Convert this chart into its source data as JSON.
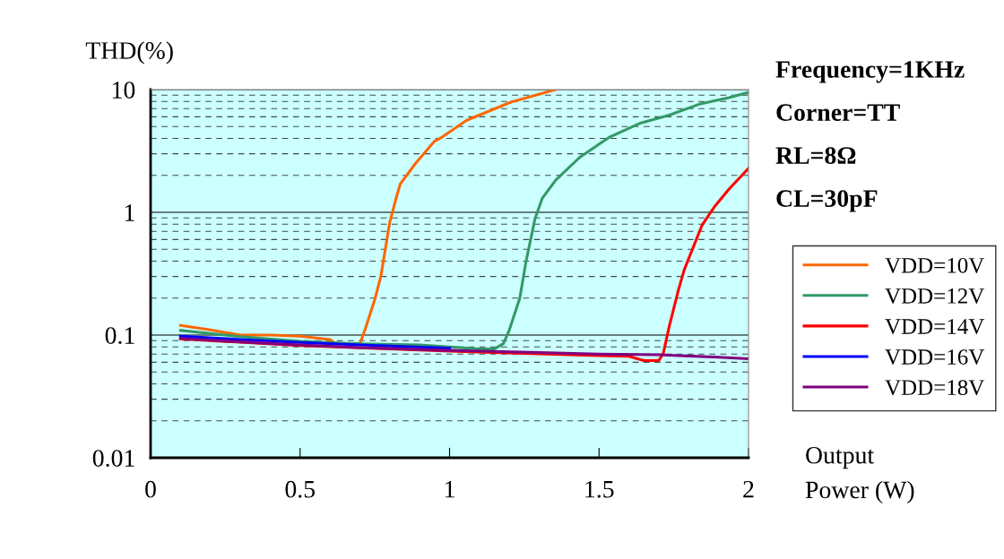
{
  "chart_data": {
    "type": "line",
    "ylabel": "THD(%)",
    "xlabel": "Output\nPower (W)",
    "annotations": [
      "Frequency=1KHz",
      "Corner=TT",
      "RL=8Ω",
      "CL=30pF"
    ],
    "log": "y",
    "xlim": [
      0,
      2
    ],
    "xticks": [
      0,
      0.5,
      1,
      1.5,
      2
    ],
    "ylim": [
      0.01,
      10
    ],
    "yticks": [
      0.01,
      0.1,
      1,
      10
    ],
    "grid": "y",
    "legend": "right",
    "line_style": "solid",
    "marker": "none",
    "series": [
      {
        "name": "VDD=10V",
        "color": "#ff6600",
        "x": [
          0.1,
          0.2,
          0.3,
          0.4,
          0.5,
          0.6,
          0.62,
          0.7,
          0.717,
          0.75,
          0.77,
          0.8,
          0.82,
          0.835,
          0.886,
          0.95,
          0.975,
          1.056,
          1.205,
          1.355
        ],
        "values": [
          0.12,
          0.11,
          0.1,
          0.1,
          0.098,
          0.092,
          0.085,
          0.085,
          0.11,
          0.195,
          0.3,
          0.83,
          1.27,
          1.7,
          2.5,
          3.8,
          4.1,
          5.6,
          7.9,
          10
        ]
      },
      {
        "name": "VDD=12V",
        "color": "#339966",
        "x": [
          0.1,
          0.3,
          0.5,
          0.7,
          0.9,
          1.0,
          1.1,
          1.15,
          1.18,
          1.2,
          1.235,
          1.256,
          1.286,
          1.31,
          1.355,
          1.435,
          1.535,
          1.635,
          1.735,
          1.835,
          1.935,
          2.0
        ],
        "values": [
          0.109,
          0.097,
          0.089,
          0.085,
          0.083,
          0.08,
          0.077,
          0.077,
          0.085,
          0.11,
          0.2,
          0.4,
          0.89,
          1.3,
          1.83,
          2.8,
          4.1,
          5.3,
          6.2,
          7.6,
          8.6,
          9.5
        ]
      },
      {
        "name": "VDD=14V",
        "color": "#ff0000",
        "x": [
          0.1,
          0.5,
          1.0,
          1.5,
          1.6,
          1.65,
          1.7,
          1.715,
          1.735,
          1.765,
          1.785,
          1.845,
          1.885,
          1.935,
          2.0
        ],
        "values": [
          0.093,
          0.082,
          0.074,
          0.068,
          0.067,
          0.062,
          0.062,
          0.071,
          0.118,
          0.23,
          0.34,
          0.79,
          1.1,
          1.55,
          2.28
        ]
      },
      {
        "name": "VDD=16V",
        "color": "#0000ff",
        "x": [
          0.1,
          0.3,
          0.5,
          0.7,
          1.0
        ],
        "values": [
          0.098,
          0.092,
          0.087,
          0.083,
          0.078
        ]
      },
      {
        "name": "VDD=18V",
        "color": "#800080",
        "x": [
          0.1,
          0.3,
          0.5,
          0.7,
          1.0,
          1.3,
          1.5,
          1.7,
          1.9,
          2.0
        ],
        "values": [
          0.094,
          0.088,
          0.083,
          0.079,
          0.075,
          0.072,
          0.07,
          0.069,
          0.066,
          0.064
        ]
      }
    ]
  }
}
